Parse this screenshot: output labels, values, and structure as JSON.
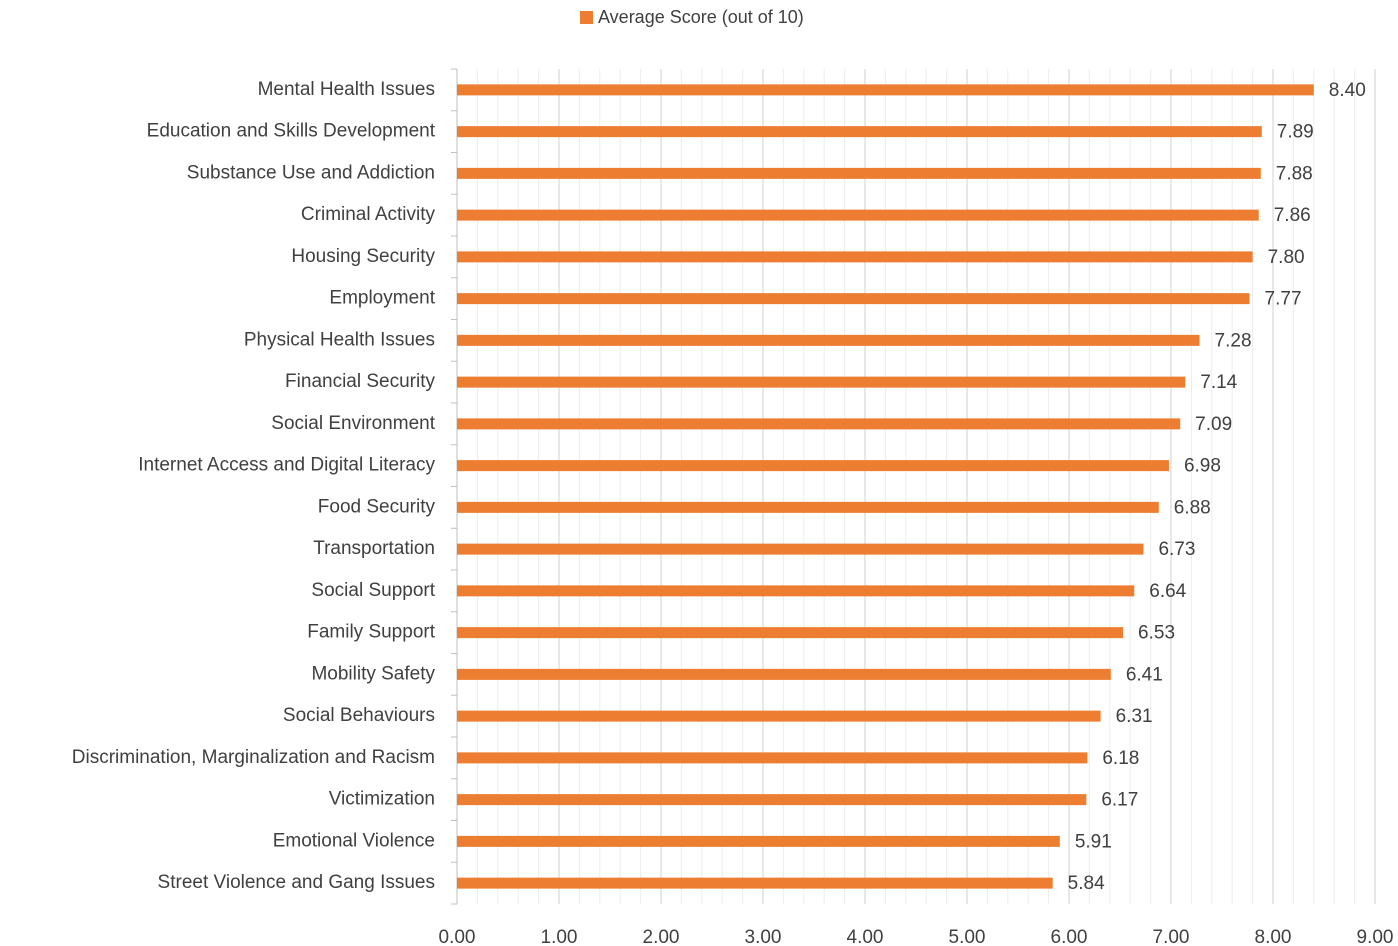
{
  "chart_data": {
    "type": "bar",
    "orientation": "horizontal",
    "legend": {
      "position": "top"
    },
    "series": [
      {
        "name": "Average Score (out of 10)",
        "color": "#ed7d31",
        "values": [
          8.4,
          7.89,
          7.88,
          7.86,
          7.8,
          7.77,
          7.28,
          7.14,
          7.09,
          6.98,
          6.88,
          6.73,
          6.64,
          6.53,
          6.41,
          6.31,
          6.18,
          6.17,
          5.91,
          5.84
        ],
        "value_labels": [
          "8.40",
          "7.89",
          "7.88",
          "7.86",
          "7.80",
          "7.77",
          "7.28",
          "7.14",
          "7.09",
          "6.98",
          "6.88",
          "6.73",
          "6.64",
          "6.53",
          "6.41",
          "6.31",
          "6.18",
          "6.17",
          "5.91",
          "5.84"
        ]
      }
    ],
    "categories": [
      "Mental Health Issues",
      "Education and Skills Development",
      "Substance Use and Addiction",
      "Criminal Activity",
      "Housing Security",
      "Employment",
      "Physical Health Issues",
      "Financial Security",
      "Social Environment",
      "Internet Access and Digital Literacy",
      "Food Security",
      "Transportation",
      "Social Support",
      "Family Support",
      "Mobility Safety",
      "Social Behaviours",
      "Discrimination, Marginalization and Racism",
      "Victimization",
      "Emotional Violence",
      "Street Violence and Gang Issues"
    ],
    "xlim": [
      0,
      9
    ],
    "xticks": [
      {
        "value": 0,
        "label": "0.00"
      },
      {
        "value": 1,
        "label": "1.00"
      },
      {
        "value": 2,
        "label": "2.00"
      },
      {
        "value": 3,
        "label": "3.00"
      },
      {
        "value": 4,
        "label": "4.00"
      },
      {
        "value": 5,
        "label": "5.00"
      },
      {
        "value": 6,
        "label": "6.00"
      },
      {
        "value": 7,
        "label": "7.00"
      },
      {
        "value": 8,
        "label": "8.00"
      },
      {
        "value": 9,
        "label": "9.00"
      }
    ],
    "xminorticks": [
      0.2,
      0.4,
      0.6,
      0.8,
      1.2,
      1.4,
      1.6,
      1.8,
      2.2,
      2.4,
      2.6,
      2.8,
      3.2,
      3.4,
      3.6,
      3.8,
      4.2,
      4.4,
      4.6,
      4.8,
      5.2,
      5.4,
      5.6,
      5.8,
      6.2,
      6.4,
      6.6,
      6.8,
      7.2,
      7.4,
      7.6,
      7.8,
      8.2,
      8.4,
      8.6,
      8.8
    ],
    "grid": true
  }
}
